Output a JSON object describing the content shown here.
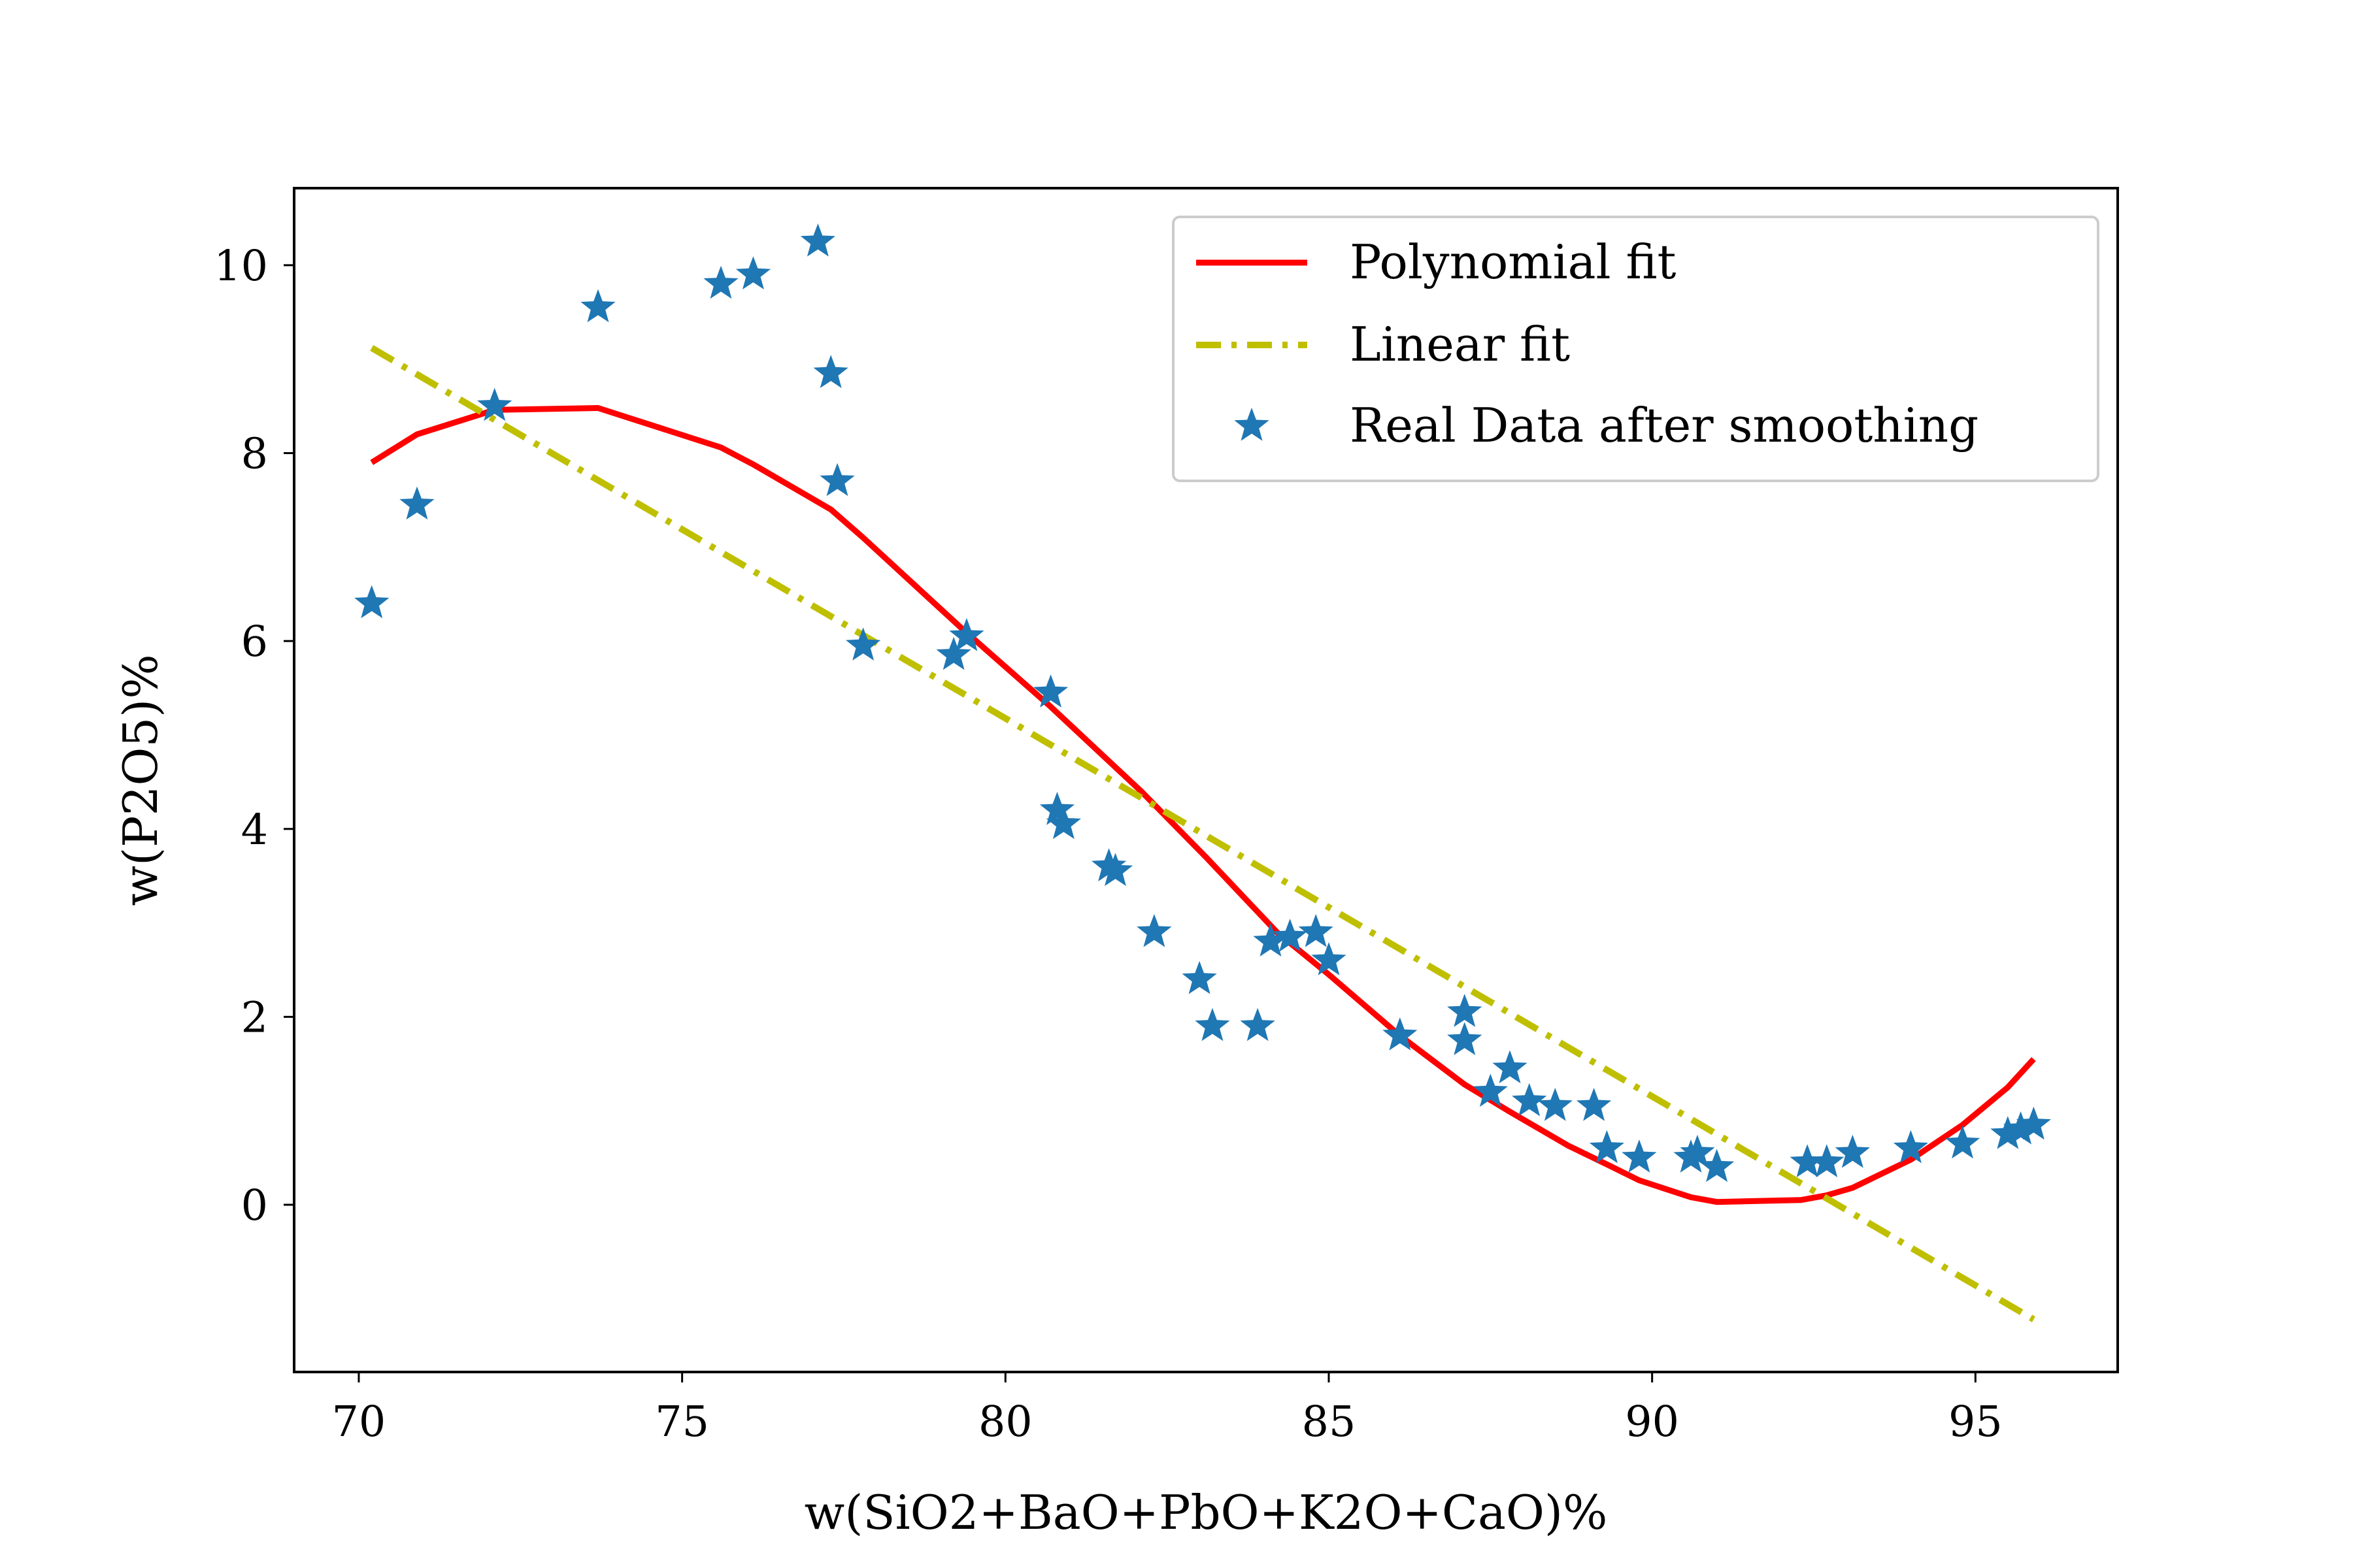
{
  "chart_data": {
    "type": "line+scatter",
    "title": "",
    "xlabel": "w(SiO2+BaO+PbO+K2O+CaO)%",
    "ylabel": "w(P2O5)%",
    "xlim": [
      69,
      97.2
    ],
    "ylim": [
      -1.78,
      10.82
    ],
    "xticks": [
      70,
      75,
      80,
      85,
      90,
      95
    ],
    "yticks": [
      0,
      2,
      4,
      6,
      8,
      10
    ],
    "grid": false,
    "legend_position": "top-right",
    "legend": [
      "Polynomial fit",
      "Linear fit",
      "Real Data after smoothing"
    ],
    "colors": {
      "polynomial": "#ff0000",
      "linear": "#bfbf00",
      "scatter": "#1f77b4"
    },
    "series": [
      {
        "name": "Polynomial fit",
        "kind": "line",
        "x": [
          70.2,
          70.9,
          72.1,
          73.7,
          75.6,
          76.1,
          77.3,
          77.8,
          79.3,
          80.7,
          82.1,
          83.1,
          84.2,
          85.0,
          86.1,
          87.1,
          87.8,
          88.7,
          89.3,
          89.8,
          90.6,
          91.0,
          92.3,
          92.7,
          93.1,
          94.0,
          94.8,
          95.5,
          95.9
        ],
        "y": [
          7.9,
          8.2,
          8.46,
          8.48,
          8.06,
          7.88,
          7.4,
          7.1,
          6.15,
          5.3,
          4.4,
          3.7,
          2.9,
          2.45,
          1.8,
          1.28,
          0.99,
          0.63,
          0.43,
          0.26,
          0.08,
          0.03,
          0.05,
          0.1,
          0.18,
          0.48,
          0.85,
          1.25,
          1.55
        ]
      },
      {
        "name": "Linear fit",
        "kind": "line",
        "x": [
          70.2,
          95.9
        ],
        "y": [
          9.12,
          -1.22
        ]
      },
      {
        "name": "Real Data after smoothing",
        "kind": "scatter",
        "x": [
          70.2,
          70.9,
          72.1,
          73.7,
          75.6,
          76.1,
          77.1,
          77.3,
          77.4,
          77.8,
          79.2,
          79.4,
          80.7,
          80.8,
          80.9,
          81.6,
          81.7,
          82.3,
          83.0,
          83.2,
          83.9,
          84.1,
          84.4,
          84.8,
          85.0,
          86.1,
          87.1,
          87.1,
          87.5,
          87.8,
          88.1,
          88.5,
          89.1,
          89.3,
          89.8,
          90.6,
          90.7,
          91.0,
          92.4,
          92.7,
          93.1,
          94.0,
          94.8,
          95.5,
          95.7,
          95.9
        ],
        "y": [
          6.4,
          7.45,
          8.5,
          9.55,
          9.8,
          9.9,
          10.25,
          8.85,
          7.7,
          5.95,
          5.85,
          6.05,
          5.45,
          4.2,
          4.05,
          3.6,
          3.55,
          2.9,
          2.4,
          1.9,
          1.9,
          2.8,
          2.85,
          2.9,
          2.6,
          1.8,
          2.05,
          1.75,
          1.2,
          1.45,
          1.1,
          1.05,
          1.05,
          0.6,
          0.5,
          0.5,
          0.55,
          0.4,
          0.45,
          0.45,
          0.55,
          0.6,
          0.65,
          0.75,
          0.8,
          0.85
        ]
      }
    ]
  }
}
